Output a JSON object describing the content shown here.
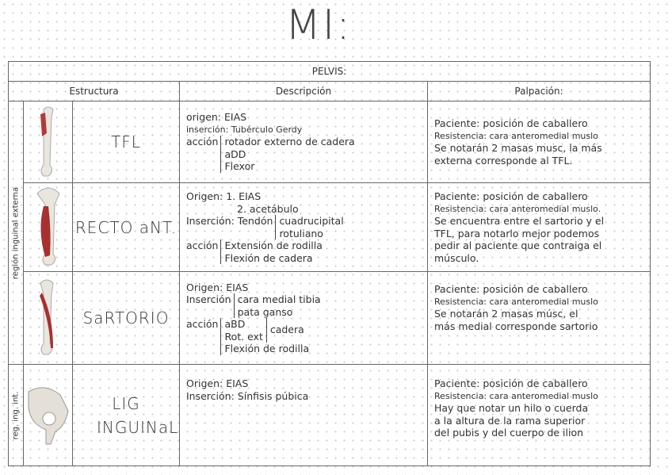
{
  "title": "MI:",
  "table": {
    "section": "PELVIS:",
    "headers": [
      "Estructura",
      "Descripción",
      "Palpación:"
    ],
    "regions": [
      "región inguinal externa",
      "reg. ing. int."
    ],
    "rows": [
      {
        "name": "TFL",
        "desc": {
          "origen_label": "origen:",
          "origen": "EIAS",
          "insercion_label": "inserción:",
          "insercion": "Tubérculo Gerdy",
          "accion_label": "acción",
          "accion": [
            "rotador externo de cadera",
            "aDD",
            "Flexor"
          ]
        },
        "palp": [
          "Paciente: posición de caballero",
          "Resistencia: cara anteromedial muslo",
          "Se notarán 2 masas musc, la más",
          "externa corresponde al TFL."
        ]
      },
      {
        "name": "RECTO aNT.",
        "desc": {
          "origen_label": "Origen:",
          "origen": [
            "1. EIAS",
            "2. acetábulo"
          ],
          "insercion_label": "Inserción:",
          "insercion_prefix": "Tendón",
          "insercion": [
            "cuadrucipital",
            "rotuliano"
          ],
          "accion_label": "acción",
          "accion": [
            "Extensión de rodilla",
            "Flexión de cadera"
          ]
        },
        "palp": [
          "Paciente: posición de caballero",
          "Resistencia: cara anteromedial muslo.",
          "Se encuentra entre el sartorio y el",
          "TFL, para notarlo mejor podemos",
          "pedir al paciente que contraiga el",
          "músculo."
        ]
      },
      {
        "name": "SaRTORIO",
        "desc": {
          "origen_label": "Origen:",
          "origen": "EIAS",
          "insercion_label": "Inserción",
          "insercion": [
            "cara medial tibia",
            "pata ganso"
          ],
          "accion_label": "acción",
          "accion": [
            "aBD",
            "Rot. ext"
          ],
          "accion_group": "cadera",
          "accion_extra": "Flexión de rodilla"
        },
        "palp": [
          "Paciente: posición de caballero",
          "Resistencia: cara anteromedial muslo",
          "Se notarán 2 masas músc, el",
          "más medial corresponde sartorio"
        ]
      },
      {
        "name": "LIG INGUINaL",
        "desc": {
          "origen_label": "Origen:",
          "origen": "EIAS",
          "insercion_label": "Inserción:",
          "insercion": "Sínfisis púbica"
        },
        "palp": [
          "Paciente: posición de caballero",
          "Resistencia: cara anteromedial muslo",
          "Hay que notar un hilo o cuerda",
          "a la altura de la rama superior",
          "del pubis y del cuerpo de ilion"
        ]
      }
    ]
  }
}
